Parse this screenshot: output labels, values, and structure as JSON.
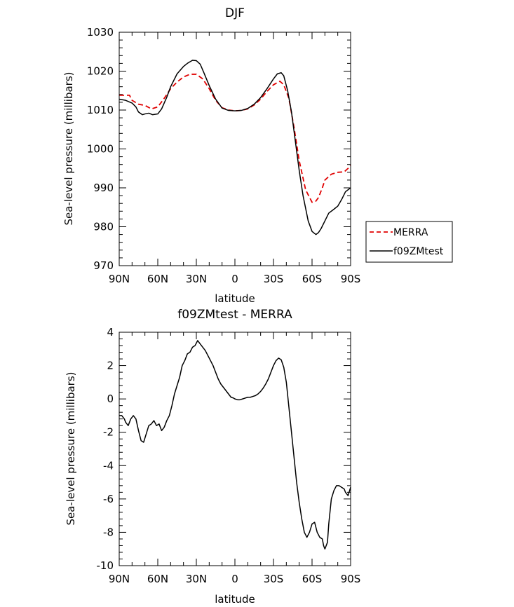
{
  "chart_data": [
    {
      "type": "line",
      "title": "DJF",
      "xlabel": "latitude",
      "ylabel": "Sea-level pressure (millibars)",
      "xlim": [
        -90,
        90
      ],
      "ylim": [
        970,
        1030
      ],
      "x_ticks": [
        -90,
        -60,
        -30,
        0,
        30,
        60,
        90
      ],
      "x_tick_labels": [
        "90N",
        "60N",
        "30N",
        "0",
        "30S",
        "60S",
        "90S"
      ],
      "y_ticks": [
        970,
        980,
        990,
        1000,
        1010,
        1020,
        1030
      ],
      "y_tick_labels": [
        "970",
        "980",
        "990",
        "1000",
        "1010",
        "1020",
        "1030"
      ],
      "legend": {
        "placement": "right"
      },
      "series": [
        {
          "name": "MERRA",
          "color": "#e00000",
          "dash": true,
          "x": [
            -90,
            -85,
            -82,
            -80,
            -75,
            -70,
            -65,
            -60,
            -55,
            -50,
            -45,
            -40,
            -35,
            -30,
            -25,
            -20,
            -15,
            -10,
            -5,
            0,
            5,
            10,
            15,
            20,
            25,
            30,
            35,
            38,
            42,
            46,
            50,
            55,
            60,
            63,
            65,
            68,
            70,
            75,
            80,
            85,
            88,
            90
          ],
          "values": [
            1013.8,
            1013.8,
            1013.8,
            1012.5,
            1011.5,
            1011.2,
            1010.3,
            1010.8,
            1013.0,
            1015.5,
            1017.2,
            1018.5,
            1019.2,
            1019.2,
            1018.0,
            1015.5,
            1012.5,
            1010.6,
            1010.0,
            1009.8,
            1009.9,
            1010.3,
            1011.3,
            1012.8,
            1014.8,
            1016.5,
            1017.4,
            1016.5,
            1013.0,
            1005.5,
            997.0,
            989.5,
            986.3,
            986.6,
            987.5,
            990.0,
            992.0,
            993.5,
            994.0,
            994.1,
            995.0,
            995.8
          ]
        },
        {
          "name": "f09ZMtest",
          "color": "#000000",
          "dash": false,
          "x": [
            -90,
            -85,
            -80,
            -77,
            -75,
            -72,
            -70,
            -67,
            -64,
            -60,
            -57,
            -53,
            -50,
            -45,
            -40,
            -37,
            -33,
            -30,
            -27,
            -24,
            -20,
            -15,
            -10,
            -5,
            0,
            5,
            10,
            15,
            20,
            25,
            30,
            33,
            36,
            38,
            41,
            44,
            47,
            50,
            53,
            57,
            60,
            63,
            65,
            67,
            70,
            73,
            77,
            80,
            83,
            86,
            90
          ],
          "values": [
            1012.8,
            1012.5,
            1011.8,
            1010.8,
            1009.5,
            1008.8,
            1009.0,
            1009.2,
            1008.8,
            1009.0,
            1010.3,
            1013.3,
            1016.0,
            1019.3,
            1021.2,
            1022.0,
            1022.8,
            1022.7,
            1021.8,
            1019.5,
            1016.3,
            1012.8,
            1010.5,
            1009.9,
            1009.8,
            1009.9,
            1010.4,
            1011.5,
            1013.2,
            1015.5,
            1018.0,
            1019.3,
            1019.6,
            1018.8,
            1015.0,
            1009.5,
            1002.0,
            994.5,
            988.0,
            981.5,
            978.8,
            978.0,
            978.5,
            979.5,
            981.5,
            983.5,
            984.5,
            985.3,
            987.0,
            989.0,
            990.0
          ]
        }
      ]
    },
    {
      "type": "line",
      "title": "f09ZMtest - MERRA",
      "xlabel": "latitude",
      "ylabel": "Sea-level pressure (millibars)",
      "xlim": [
        -90,
        90
      ],
      "ylim": [
        -10,
        4
      ],
      "x_ticks": [
        -90,
        -60,
        -30,
        0,
        30,
        60,
        90
      ],
      "x_tick_labels": [
        "90N",
        "60N",
        "30N",
        "0",
        "30S",
        "60S",
        "90S"
      ],
      "y_ticks": [
        -10,
        -8,
        -6,
        -4,
        -2,
        0,
        2,
        4
      ],
      "y_tick_labels": [
        "-10",
        "-8",
        "-6",
        "-4",
        "-2",
        "0",
        "2",
        "4"
      ],
      "series": [
        {
          "color": "#000000",
          "dash": false,
          "x": [
            -90,
            -88,
            -86,
            -85,
            -83,
            -81,
            -79,
            -77,
            -75,
            -73,
            -71,
            -69,
            -67,
            -65,
            -63,
            -61,
            -59,
            -57,
            -55,
            -53,
            -51,
            -49,
            -47,
            -45,
            -43,
            -41,
            -39,
            -37,
            -35,
            -33,
            -31,
            -29,
            -27,
            -25,
            -23,
            -21,
            -19,
            -17,
            -15,
            -13,
            -11,
            -9,
            -7,
            -5,
            -3,
            -1,
            0,
            2,
            4,
            6,
            8,
            10,
            12,
            14,
            16,
            18,
            20,
            22,
            24,
            26,
            28,
            30,
            32,
            34,
            36,
            38,
            40,
            42,
            44,
            46,
            48,
            50,
            52,
            54,
            56,
            58,
            60,
            62,
            64,
            66,
            68,
            69,
            70,
            72,
            73,
            75,
            77,
            79,
            81,
            83,
            85,
            86,
            88,
            90
          ],
          "values": [
            -1.0,
            -1.0,
            -1.2,
            -1.4,
            -1.6,
            -1.2,
            -1.0,
            -1.2,
            -1.9,
            -2.5,
            -2.6,
            -2.1,
            -1.6,
            -1.5,
            -1.3,
            -1.6,
            -1.5,
            -1.9,
            -1.7,
            -1.3,
            -1.0,
            -0.4,
            0.3,
            0.8,
            1.3,
            2.0,
            2.3,
            2.7,
            2.8,
            3.1,
            3.2,
            3.5,
            3.3,
            3.1,
            2.9,
            2.6,
            2.3,
            2.0,
            1.6,
            1.2,
            0.9,
            0.7,
            0.5,
            0.3,
            0.1,
            0.05,
            0.0,
            -0.05,
            -0.05,
            0.0,
            0.05,
            0.1,
            0.1,
            0.15,
            0.2,
            0.3,
            0.45,
            0.65,
            0.9,
            1.2,
            1.6,
            2.0,
            2.3,
            2.45,
            2.35,
            1.9,
            1.0,
            -0.5,
            -2.0,
            -3.5,
            -5.0,
            -6.2,
            -7.2,
            -8.0,
            -8.3,
            -8.0,
            -7.5,
            -7.4,
            -8.0,
            -8.3,
            -8.4,
            -8.8,
            -9.0,
            -8.6,
            -7.5,
            -6.0,
            -5.5,
            -5.2,
            -5.2,
            -5.3,
            -5.4,
            -5.6,
            -5.8,
            -5.3
          ]
        }
      ]
    }
  ]
}
